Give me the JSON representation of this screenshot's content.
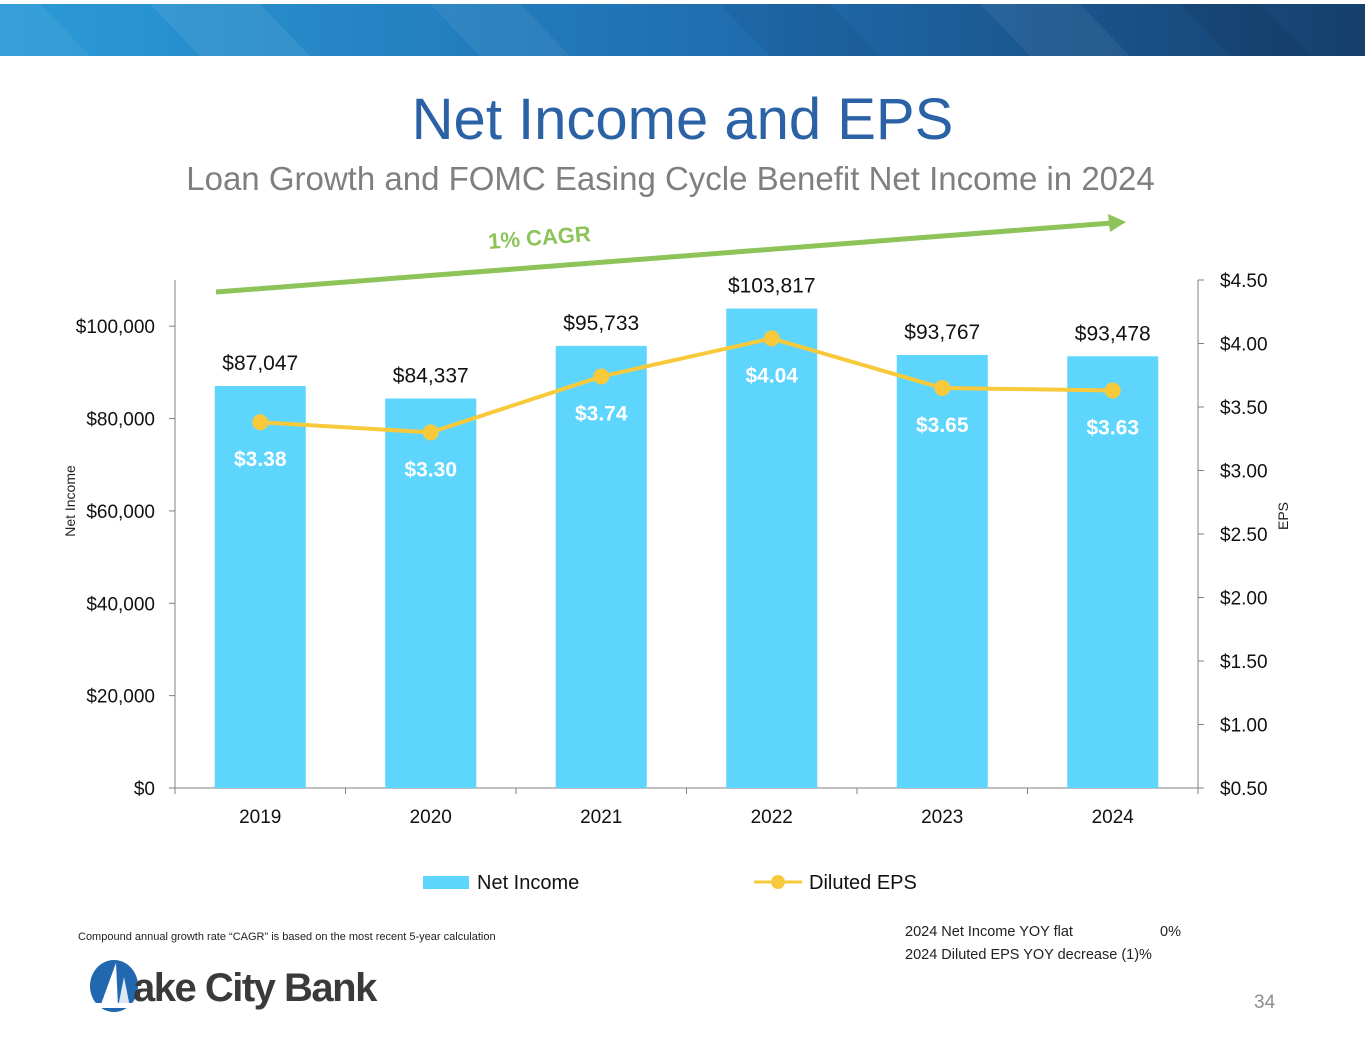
{
  "slide": {
    "title": "Net Income and EPS",
    "subtitle": "Loan Growth and FOMC Easing Cycle Benefit Net Income in 2024",
    "page_number": "34",
    "footnote": "Compound annual growth rate “CAGR” is based on the most recent 5-year calculation"
  },
  "logo": {
    "text": "ake City Bank",
    "alt": "Lake City Bank"
  },
  "stats": [
    {
      "label": "2024 Net Income YOY flat",
      "value": "0%"
    },
    {
      "label": "2024 Diluted EPS YOY decrease",
      "value": "(1)%"
    }
  ],
  "colors": {
    "bar": "#5dd5fd",
    "line": "#f9c93c",
    "cagr": "#8cc45a",
    "title": "#2b62a6",
    "subtitle": "#7f7f7f",
    "banner_left": "#2b9bd8",
    "banner_right": "#163f6c"
  },
  "chart_data": {
    "type": "bar",
    "categories": [
      "2019",
      "2020",
      "2021",
      "2022",
      "2023",
      "2024"
    ],
    "series": [
      {
        "name": "Net Income",
        "type": "bar",
        "axis": "left",
        "values": [
          87047,
          84337,
          95733,
          103817,
          93767,
          93478
        ],
        "labels": [
          "$87,047",
          "$84,337",
          "$95,733",
          "$103,817",
          "$93,767",
          "$93,478"
        ]
      },
      {
        "name": "Diluted EPS",
        "type": "line",
        "axis": "right",
        "values": [
          3.38,
          3.3,
          3.74,
          4.04,
          3.65,
          3.63
        ],
        "labels": [
          "$3.38",
          "$3.30",
          "$3.74",
          "$4.04",
          "$3.65",
          "$3.63"
        ]
      }
    ],
    "y_left": {
      "label": "Net Income",
      "min": 0,
      "max": 110000,
      "ticks": [
        0,
        20000,
        40000,
        60000,
        80000,
        100000
      ],
      "tick_labels": [
        "$0",
        "$20,000",
        "$40,000",
        "$60,000",
        "$80,000",
        "$100,000"
      ]
    },
    "y_right": {
      "label": "EPS",
      "min": 0.5,
      "max": 4.5,
      "ticks": [
        0.5,
        1.0,
        1.5,
        2.0,
        2.5,
        3.0,
        3.5,
        4.0,
        4.5
      ],
      "tick_labels": [
        "$0.50",
        "$1.00",
        "$1.50",
        "$2.00",
        "$2.50",
        "$3.00",
        "$3.50",
        "$4.00",
        "$4.50"
      ]
    },
    "annotation": "1% CAGR",
    "legend_position": "bottom"
  }
}
